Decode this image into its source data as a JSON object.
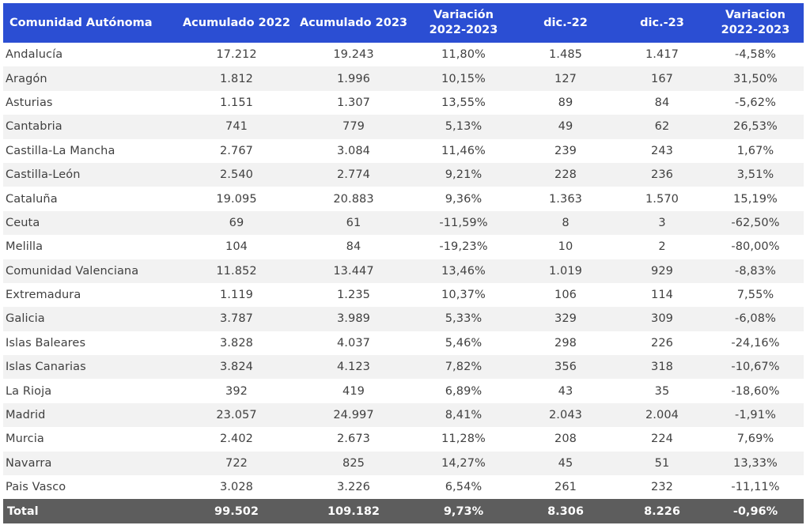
{
  "columns": [
    "Comunidad Autónoma",
    "Acumulado 2022",
    "Acumulado 2023",
    "Variación 2022-2023",
    "dic.-22",
    "dic.-23",
    "Variacion 2022-2023"
  ],
  "columns_lines": [
    [
      "Comunidad Autónoma"
    ],
    [
      "Acumulado 2022"
    ],
    [
      "Acumulado 2023"
    ],
    [
      "Variación",
      "2022-2023"
    ],
    [
      "dic.-22"
    ],
    [
      "dic.-23"
    ],
    [
      "Variacion",
      "2022-2023"
    ]
  ],
  "colors": {
    "header_bg": "#2b4ed3",
    "stripe_bg": "#f2f2f2",
    "total_bg": "#5d5d5d",
    "text": "#404040"
  },
  "rows": [
    [
      "Andalucía",
      "17.212",
      "19.243",
      "11,80%",
      "1.485",
      "1.417",
      "-4,58%"
    ],
    [
      "Aragón",
      "1.812",
      "1.996",
      "10,15%",
      "127",
      "167",
      "31,50%"
    ],
    [
      "Asturias",
      "1.151",
      "1.307",
      "13,55%",
      "89",
      "84",
      "-5,62%"
    ],
    [
      "Cantabria",
      "741",
      "779",
      "5,13%",
      "49",
      "62",
      "26,53%"
    ],
    [
      "Castilla-La Mancha",
      "2.767",
      "3.084",
      "11,46%",
      "239",
      "243",
      "1,67%"
    ],
    [
      "Castilla-León",
      "2.540",
      "2.774",
      "9,21%",
      "228",
      "236",
      "3,51%"
    ],
    [
      "Cataluña",
      "19.095",
      "20.883",
      "9,36%",
      "1.363",
      "1.570",
      "15,19%"
    ],
    [
      "Ceuta",
      "69",
      "61",
      "-11,59%",
      "8",
      "3",
      "-62,50%"
    ],
    [
      "Melilla",
      "104",
      "84",
      "-19,23%",
      "10",
      "2",
      "-80,00%"
    ],
    [
      "Comunidad Valenciana",
      "11.852",
      "13.447",
      "13,46%",
      "1.019",
      "929",
      "-8,83%"
    ],
    [
      "Extremadura",
      "1.119",
      "1.235",
      "10,37%",
      "106",
      "114",
      "7,55%"
    ],
    [
      "Galicia",
      "3.787",
      "3.989",
      "5,33%",
      "329",
      "309",
      "-6,08%"
    ],
    [
      "Islas Baleares",
      "3.828",
      "4.037",
      "5,46%",
      "298",
      "226",
      "-24,16%"
    ],
    [
      "Islas Canarias",
      "3.824",
      "4.123",
      "7,82%",
      "356",
      "318",
      "-10,67%"
    ],
    [
      "La Rioja",
      "392",
      "419",
      "6,89%",
      "43",
      "35",
      "-18,60%"
    ],
    [
      "Madrid",
      "23.057",
      "24.997",
      "8,41%",
      "2.043",
      "2.004",
      "-1,91%"
    ],
    [
      "Murcia",
      "2.402",
      "2.673",
      "11,28%",
      "208",
      "224",
      "7,69%"
    ],
    [
      "Navarra",
      "722",
      "825",
      "14,27%",
      "45",
      "51",
      "13,33%"
    ],
    [
      "Pais Vasco",
      "3.028",
      "3.226",
      "6,54%",
      "261",
      "232",
      "-11,11%"
    ]
  ],
  "total": [
    "Total",
    "99.502",
    "109.182",
    "9,73%",
    "8.306",
    "8.226",
    "-0,96%"
  ]
}
